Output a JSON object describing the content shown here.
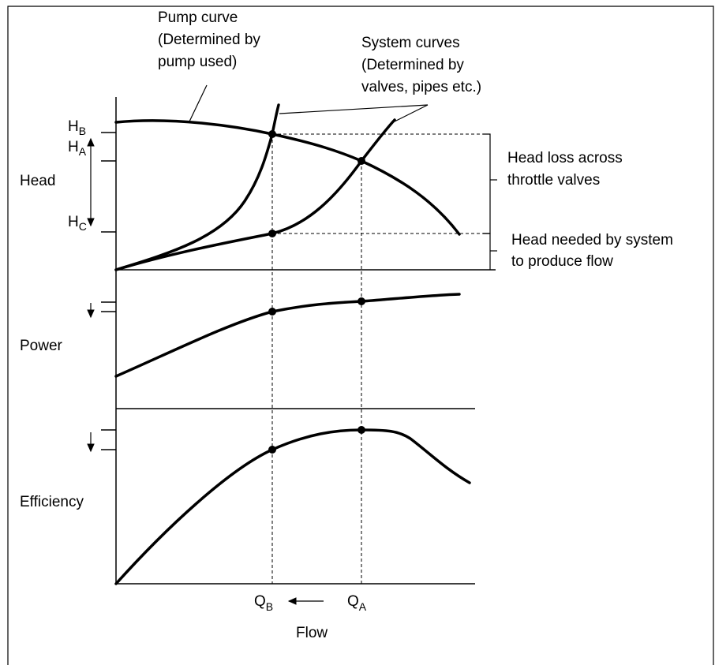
{
  "labels": {
    "pump_curve": [
      "Pump curve",
      "(Determined by",
      "pump used)"
    ],
    "system_curves": [
      "System curves",
      "(Determined by",
      "valves, pipes etc.)"
    ],
    "head": "Head",
    "power": "Power",
    "efficiency": "Efficiency",
    "flow": "Flow",
    "head_loss": [
      "Head loss across",
      "throttle valves"
    ],
    "head_needed": [
      "Head needed by system",
      "to produce flow"
    ],
    "h_b": {
      "main": "H",
      "sub": "B"
    },
    "h_a": {
      "main": "H",
      "sub": "A"
    },
    "h_c": {
      "main": "H",
      "sub": "C"
    },
    "q_b": {
      "main": "Q",
      "sub": "B"
    },
    "q_a": {
      "main": "Q",
      "sub": "A"
    }
  }
}
